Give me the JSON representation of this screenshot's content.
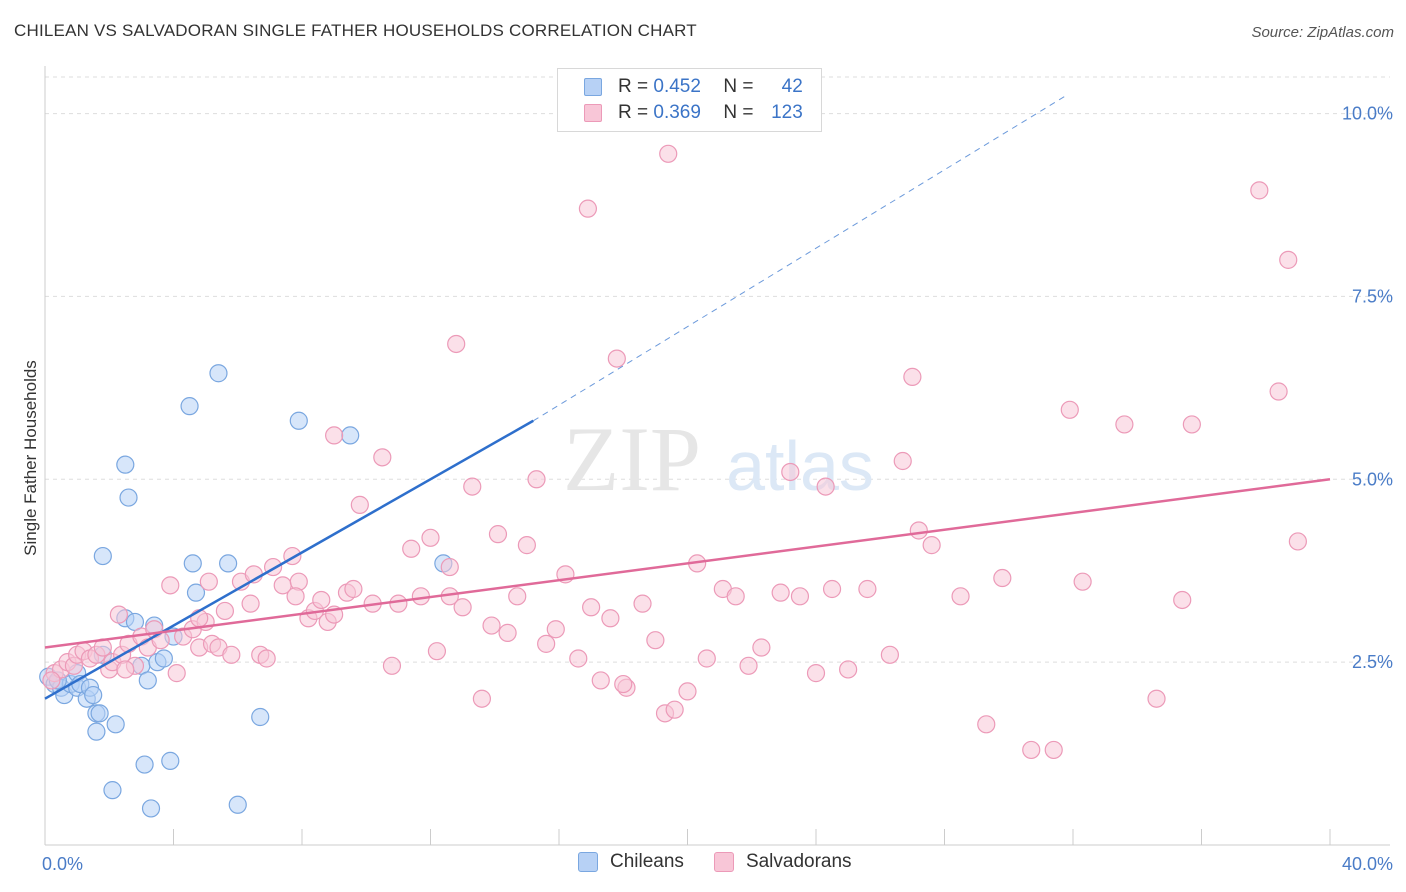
{
  "title": "CHILEAN VS SALVADORAN SINGLE FATHER HOUSEHOLDS CORRELATION CHART",
  "source": "Source: ZipAtlas.com",
  "watermark": {
    "zip": "ZIP",
    "atlas": "atlas"
  },
  "legend": {
    "rows": [
      {
        "r_label": "R =",
        "r_value": "0.452",
        "n_label": "N =",
        "n_value": "42"
      },
      {
        "r_label": "R =",
        "r_value": "0.369",
        "n_label": "N =",
        "n_value": "123"
      }
    ]
  },
  "bottom_legend": [
    {
      "label": "Chileans"
    },
    {
      "label": "Salvadorans"
    }
  ],
  "colors": {
    "chileans_fill": "#b7d1f5",
    "chileans_stroke": "#7aa7e0",
    "chileans_line": "#2e6fcc",
    "salvadorans_fill": "#f8c6d7",
    "salvadorans_stroke": "#ec9ab8",
    "salvadorans_line": "#e06a99",
    "tick_text": "#4a7cc7",
    "grid": "#dddddd"
  },
  "chart_data": {
    "type": "scatter",
    "title": "CHILEAN VS SALVADORAN SINGLE FATHER HOUSEHOLDS CORRELATION CHART",
    "xlabel": "",
    "ylabel": "Single Father Households",
    "xlim": [
      0,
      40
    ],
    "ylim": [
      0,
      10.5
    ],
    "x_tick_labels": [
      {
        "value": 0,
        "label": "0.0%"
      },
      {
        "value": 40,
        "label": "40.0%"
      }
    ],
    "y_tick_labels": [
      {
        "value": 2.5,
        "label": "2.5%"
      },
      {
        "value": 5.0,
        "label": "5.0%"
      },
      {
        "value": 7.5,
        "label": "7.5%"
      },
      {
        "value": 10.0,
        "label": "10.0%"
      }
    ],
    "series": [
      {
        "name": "Chileans",
        "R": 0.452,
        "N": 42,
        "trend": {
          "x0": 0,
          "y0": 2.0,
          "x1": 15.2,
          "y1": 5.8,
          "dash_to_x": 31.8,
          "dash_to_y": 10.25
        },
        "points": [
          [
            0.1,
            2.3
          ],
          [
            0.3,
            2.2
          ],
          [
            0.5,
            2.15
          ],
          [
            0.6,
            2.05
          ],
          [
            0.8,
            2.2
          ],
          [
            1.0,
            2.15
          ],
          [
            1.0,
            2.35
          ],
          [
            1.1,
            2.2
          ],
          [
            1.3,
            2.0
          ],
          [
            1.4,
            2.15
          ],
          [
            1.5,
            2.05
          ],
          [
            1.6,
            1.8
          ],
          [
            1.6,
            1.55
          ],
          [
            1.7,
            1.8
          ],
          [
            2.1,
            0.75
          ],
          [
            2.2,
            1.65
          ],
          [
            2.5,
            5.2
          ],
          [
            2.5,
            3.1
          ],
          [
            2.6,
            4.75
          ],
          [
            2.8,
            3.05
          ],
          [
            3.0,
            2.45
          ],
          [
            3.1,
            1.1
          ],
          [
            3.2,
            2.25
          ],
          [
            3.3,
            0.5
          ],
          [
            3.4,
            3.0
          ],
          [
            3.5,
            2.5
          ],
          [
            3.7,
            2.55
          ],
          [
            3.9,
            1.15
          ],
          [
            4.0,
            2.85
          ],
          [
            4.5,
            6.0
          ],
          [
            4.6,
            3.85
          ],
          [
            4.7,
            3.45
          ],
          [
            5.4,
            6.45
          ],
          [
            5.7,
            3.85
          ],
          [
            6.0,
            0.55
          ],
          [
            6.7,
            1.75
          ],
          [
            7.9,
            5.8
          ],
          [
            9.5,
            5.6
          ],
          [
            12.4,
            3.85
          ],
          [
            1.8,
            2.6
          ],
          [
            1.8,
            3.95
          ],
          [
            0.4,
            2.25
          ]
        ]
      },
      {
        "name": "Salvadorans",
        "R": 0.369,
        "N": 123,
        "trend": {
          "x0": 0,
          "y0": 2.7,
          "x1": 40,
          "y1": 5.0
        },
        "points": [
          [
            0.3,
            2.35
          ],
          [
            0.5,
            2.4
          ],
          [
            0.7,
            2.5
          ],
          [
            0.9,
            2.45
          ],
          [
            1.0,
            2.6
          ],
          [
            1.2,
            2.65
          ],
          [
            1.4,
            2.55
          ],
          [
            1.6,
            2.6
          ],
          [
            1.8,
            2.7
          ],
          [
            2.0,
            2.4
          ],
          [
            2.1,
            2.5
          ],
          [
            2.3,
            3.15
          ],
          [
            2.4,
            2.6
          ],
          [
            2.6,
            2.75
          ],
          [
            2.8,
            2.45
          ],
          [
            3.0,
            2.85
          ],
          [
            3.2,
            2.7
          ],
          [
            3.4,
            2.95
          ],
          [
            3.6,
            2.8
          ],
          [
            3.9,
            3.55
          ],
          [
            4.1,
            2.35
          ],
          [
            4.3,
            2.85
          ],
          [
            4.6,
            2.95
          ],
          [
            4.8,
            2.7
          ],
          [
            5.0,
            3.05
          ],
          [
            5.2,
            2.75
          ],
          [
            5.4,
            2.7
          ],
          [
            5.6,
            3.2
          ],
          [
            5.8,
            2.6
          ],
          [
            6.1,
            3.6
          ],
          [
            6.4,
            3.3
          ],
          [
            6.7,
            2.6
          ],
          [
            6.9,
            2.55
          ],
          [
            7.1,
            3.8
          ],
          [
            7.4,
            3.55
          ],
          [
            7.7,
            3.95
          ],
          [
            7.9,
            3.6
          ],
          [
            8.2,
            3.1
          ],
          [
            8.4,
            3.2
          ],
          [
            8.6,
            3.35
          ],
          [
            8.8,
            3.05
          ],
          [
            9.0,
            3.15
          ],
          [
            9.4,
            3.45
          ],
          [
            9.6,
            3.5
          ],
          [
            9.8,
            4.65
          ],
          [
            10.2,
            3.3
          ],
          [
            10.5,
            5.3
          ],
          [
            10.8,
            2.45
          ],
          [
            11.0,
            3.3
          ],
          [
            11.4,
            4.05
          ],
          [
            11.7,
            3.4
          ],
          [
            12.0,
            4.2
          ],
          [
            12.2,
            2.65
          ],
          [
            12.6,
            3.8
          ],
          [
            12.8,
            6.85
          ],
          [
            13.0,
            3.25
          ],
          [
            13.3,
            4.9
          ],
          [
            13.6,
            2.0
          ],
          [
            13.9,
            3.0
          ],
          [
            14.1,
            4.25
          ],
          [
            14.4,
            2.9
          ],
          [
            14.7,
            3.4
          ],
          [
            15.0,
            4.1
          ],
          [
            15.3,
            5.0
          ],
          [
            15.6,
            2.75
          ],
          [
            15.9,
            2.95
          ],
          [
            16.2,
            3.7
          ],
          [
            16.6,
            2.55
          ],
          [
            17.0,
            3.25
          ],
          [
            17.3,
            2.25
          ],
          [
            17.6,
            3.1
          ],
          [
            17.8,
            6.65
          ],
          [
            18.1,
            2.15
          ],
          [
            18.6,
            3.3
          ],
          [
            19.0,
            2.8
          ],
          [
            19.3,
            1.8
          ],
          [
            19.6,
            1.85
          ],
          [
            20.0,
            2.1
          ],
          [
            20.3,
            3.85
          ],
          [
            20.6,
            2.55
          ],
          [
            21.1,
            3.5
          ],
          [
            21.5,
            3.4
          ],
          [
            21.9,
            2.45
          ],
          [
            22.3,
            2.7
          ],
          [
            22.9,
            3.45
          ],
          [
            23.2,
            5.1
          ],
          [
            23.5,
            3.4
          ],
          [
            24.0,
            2.35
          ],
          [
            24.3,
            4.9
          ],
          [
            24.5,
            3.5
          ],
          [
            25.0,
            2.4
          ],
          [
            25.6,
            3.5
          ],
          [
            26.3,
            2.6
          ],
          [
            26.7,
            5.25
          ],
          [
            27.2,
            4.3
          ],
          [
            27.6,
            4.1
          ],
          [
            28.5,
            3.4
          ],
          [
            29.3,
            1.65
          ],
          [
            29.8,
            3.65
          ],
          [
            30.7,
            1.3
          ],
          [
            31.4,
            1.3
          ],
          [
            32.3,
            3.6
          ],
          [
            31.9,
            5.95
          ],
          [
            33.6,
            5.75
          ],
          [
            34.6,
            2.0
          ],
          [
            35.4,
            3.35
          ],
          [
            35.7,
            5.75
          ],
          [
            37.8,
            8.95
          ],
          [
            38.4,
            6.2
          ],
          [
            39.0,
            4.15
          ],
          [
            38.7,
            8.0
          ],
          [
            16.9,
            8.7
          ],
          [
            19.4,
            9.45
          ],
          [
            27.0,
            6.4
          ],
          [
            18.0,
            2.2
          ],
          [
            9.0,
            5.6
          ],
          [
            12.6,
            3.4
          ],
          [
            4.8,
            3.1
          ],
          [
            6.5,
            3.7
          ],
          [
            0.2,
            2.25
          ],
          [
            5.1,
            3.6
          ],
          [
            7.8,
            3.4
          ],
          [
            2.5,
            2.4
          ]
        ]
      }
    ]
  }
}
